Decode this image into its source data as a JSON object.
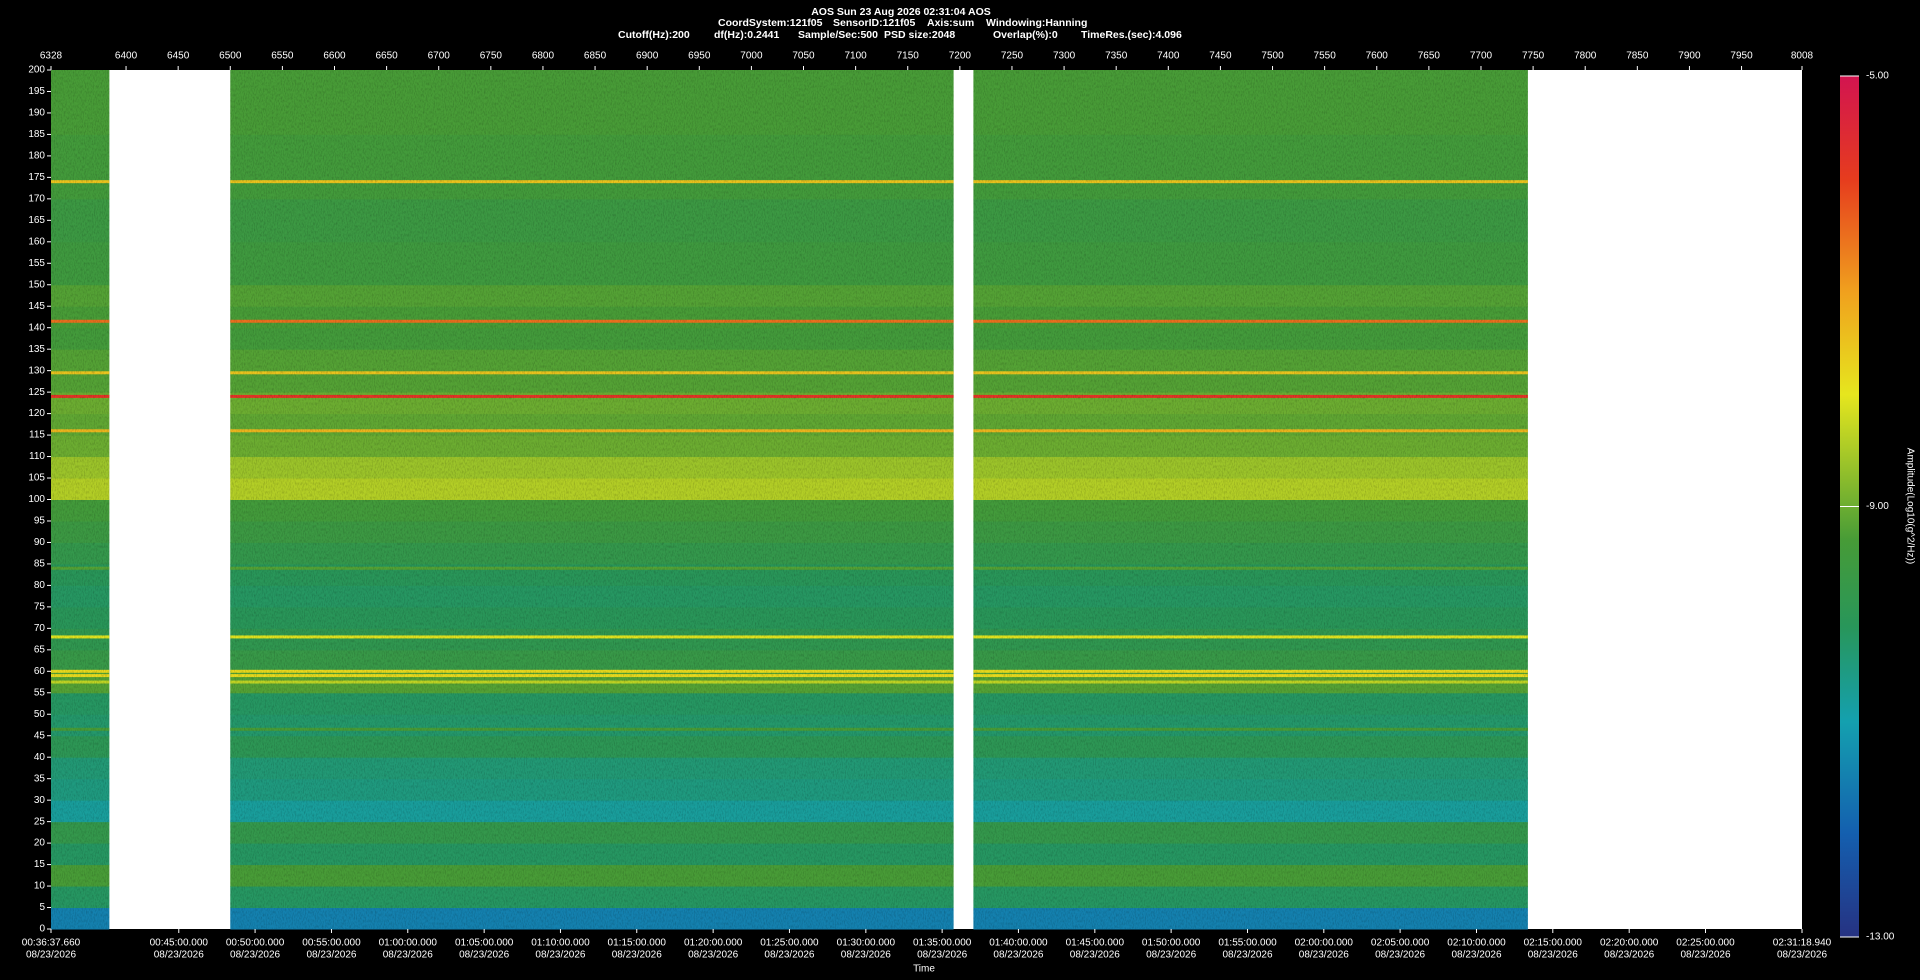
{
  "chart_data": {
    "type": "spectrogram",
    "title": "AOS  Sun 23 Aug 2026 02:31:04  AOS",
    "info_line1": [
      "CoordSystem:121f05",
      "SensorID:121f05",
      "Axis:sum",
      "Windowing:Hanning"
    ],
    "info_line2": [
      "Cutoff(Hz):200",
      "df(Hz):0.2441",
      "Sample/Sec:500",
      "PSD size:2048",
      "Overlap(%):0",
      "TimeRes.(sec):4.096"
    ],
    "xlabel": "Time",
    "colorbar_label": "Amplitude(Log10(g^2/Hz))",
    "xlim": [
      6328,
      8008
    ],
    "xticks": [
      6328,
      6400,
      6450,
      6500,
      6550,
      6600,
      6650,
      6700,
      6750,
      6800,
      6850,
      6900,
      6950,
      7000,
      7050,
      7100,
      7150,
      7200,
      7250,
      7300,
      7350,
      7400,
      7450,
      7500,
      7550,
      7600,
      7650,
      7700,
      7750,
      7800,
      7850,
      7900,
      7950,
      8008
    ],
    "x2ticks": [
      {
        "value": 6328,
        "label": "00:36:37.660"
      },
      {
        "value": 6450.6,
        "label": "00:45:00.000"
      },
      {
        "value": 6523.8,
        "label": "00:50:00.000"
      },
      {
        "value": 6597.1,
        "label": "00:55:00.000"
      },
      {
        "value": 6670.3,
        "label": "01:00:00.000"
      },
      {
        "value": 6743.6,
        "label": "01:05:00.000"
      },
      {
        "value": 6816.8,
        "label": "01:10:00.000"
      },
      {
        "value": 6890.0,
        "label": "01:15:00.000"
      },
      {
        "value": 6963.3,
        "label": "01:20:00.000"
      },
      {
        "value": 7036.5,
        "label": "01:25:00.000"
      },
      {
        "value": 7109.8,
        "label": "01:30:00.000"
      },
      {
        "value": 7183.0,
        "label": "01:35:00.000"
      },
      {
        "value": 7256.2,
        "label": "01:40:00.000"
      },
      {
        "value": 7329.5,
        "label": "01:45:00.000"
      },
      {
        "value": 7402.7,
        "label": "01:50:00.000"
      },
      {
        "value": 7476.0,
        "label": "01:55:00.000"
      },
      {
        "value": 7549.2,
        "label": "02:00:00.000"
      },
      {
        "value": 7622.4,
        "label": "02:05:00.000"
      },
      {
        "value": 7695.7,
        "label": "02:10:00.000"
      },
      {
        "value": 7768.9,
        "label": "02:15:00.000"
      },
      {
        "value": 7842.2,
        "label": "02:20:00.000"
      },
      {
        "value": 7915.4,
        "label": "02:25:00.000"
      },
      {
        "value": 8008,
        "label": "02:31:18.940"
      }
    ],
    "x2tick_dates": [
      "08/23/2026",
      "08/23/2026",
      "08/23/2026",
      "08/23/2026",
      "08/23/2026",
      "08/23/2026",
      "08/23/2026",
      "08/23/2026",
      "08/23/2026",
      "08/23/2026",
      "08/23/2026",
      "08/23/2026",
      "08/23/2026",
      "08/23/2026",
      "08/23/2026",
      "08/23/2026",
      "08/23/2026",
      "08/23/2026",
      "08/23/2026",
      "08/23/2026",
      "08/23/2026",
      "08/23/2026",
      "08/23/2026"
    ],
    "ylim": [
      0,
      200
    ],
    "yticks": [
      0,
      5,
      10,
      15,
      20,
      25,
      30,
      35,
      40,
      45,
      50,
      55,
      60,
      65,
      70,
      75,
      80,
      85,
      90,
      95,
      100,
      105,
      110,
      115,
      120,
      125,
      130,
      135,
      140,
      145,
      150,
      155,
      160,
      165,
      170,
      175,
      180,
      185,
      190,
      195,
      200
    ],
    "segments": [
      [
        6328,
        6384
      ],
      [
        6500,
        7194
      ],
      [
        7213,
        7745
      ]
    ],
    "rows": {
      "bins": [
        0,
        5,
        10,
        15,
        20,
        25,
        30,
        35,
        40,
        45,
        50,
        55,
        60,
        65,
        70,
        75,
        80,
        85,
        90,
        95,
        100,
        105,
        110,
        115,
        120,
        125,
        130,
        135,
        140,
        145,
        150,
        155,
        160,
        165,
        170,
        175,
        180,
        185,
        190,
        195,
        200
      ],
      "values": [
        -11.5,
        -10.2,
        -9.3,
        -10.2,
        -9.8,
        -10.8,
        -10.5,
        -10.4,
        -10.0,
        -10.3,
        -10.2,
        -9.2,
        -9.7,
        -9.9,
        -10.1,
        -10.2,
        -10.1,
        -9.8,
        -9.6,
        -9.4,
        -8.4,
        -8.6,
        -9.0,
        -9.1,
        -9.0,
        -9.2,
        -9.2,
        -9.4,
        -9.3,
        -9.2,
        -9.5,
        -9.5,
        -9.6,
        -9.6,
        -9.4,
        -9.4,
        -9.4,
        -9.3,
        -9.3,
        -9.3
      ]
    },
    "lines": {
      "freq": [
        174,
        141.5,
        129.5,
        124,
        116,
        84,
        68,
        60,
        59,
        57.5,
        46.5
      ],
      "values": [
        -7.5,
        -6.5,
        -7.5,
        -5.8,
        -7.3,
        -9.2,
        -8.0,
        -7.8,
        -7.8,
        -8.3,
        -9.3
      ]
    },
    "clim": [
      -13,
      -5
    ],
    "cticks": [
      {
        "value": -5,
        "label": "-5.00"
      },
      {
        "value": -9,
        "label": "-9.00"
      },
      {
        "value": -13,
        "label": "-13.00"
      }
    ]
  }
}
